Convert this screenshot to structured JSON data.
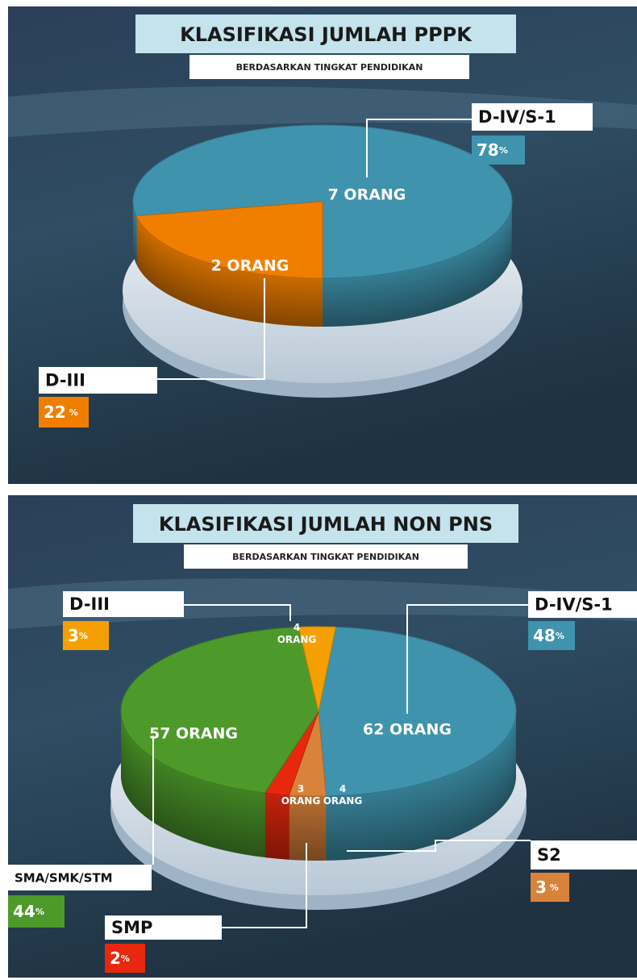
{
  "chart_data": [
    {
      "type": "pie",
      "title": "KLASIFIKASI JUMLAH PPPK",
      "subtitle": "BERDASARKAN TINGKAT PENDIDIKAN",
      "categories": [
        "D-IV/S-1",
        "D-III"
      ],
      "values": [
        78,
        22
      ],
      "value_labels": [
        "78%",
        "22 %"
      ],
      "count_labels": [
        "7 ORANG",
        "2 ORANG"
      ],
      "colors": [
        "#3f93ad",
        "#f07f00"
      ]
    },
    {
      "type": "pie",
      "title": "KLASIFIKASI JUMLAH NON PNS",
      "subtitle": "BERDASARKAN TINGKAT PENDIDIKAN",
      "categories": [
        "D-IV/S-1",
        "S2",
        "SMP",
        "SMA/SMK/STM",
        "D-III"
      ],
      "values": [
        48,
        3,
        2,
        44,
        3
      ],
      "value_labels": [
        "48%",
        "3 %",
        "2%",
        "44%",
        "3%"
      ],
      "count_labels": [
        "62 ORANG",
        "4 ORANG",
        "3 ORANG",
        "57 ORANG",
        "4 ORANG"
      ],
      "colors": [
        "#3f93ad",
        "#d9823a",
        "#e8280e",
        "#4d9a2b",
        "#f5a000"
      ]
    }
  ]
}
